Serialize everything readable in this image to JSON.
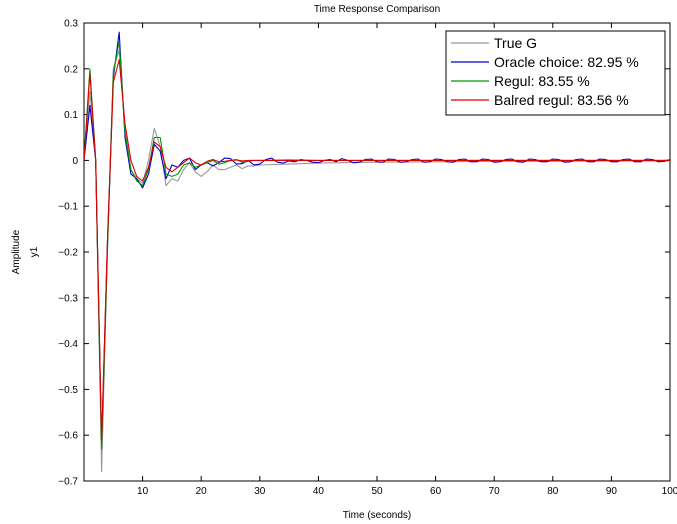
{
  "chart_data": {
    "type": "line",
    "title": "Time Response Comparison",
    "xlabel": "Time (seconds)",
    "ylabel": "Amplitude",
    "ylabel_sub": "y1",
    "xlim": [
      0,
      100
    ],
    "ylim": [
      -0.7,
      0.3
    ],
    "xticks": [
      10,
      20,
      30,
      40,
      50,
      60,
      70,
      80,
      90,
      100
    ],
    "yticks": [
      0.3,
      0.2,
      0.1,
      0,
      -0.1,
      -0.2,
      -0.3,
      -0.4,
      -0.5,
      -0.6,
      -0.7
    ],
    "ytick_labels": [
      "0.3",
      "0.2",
      "0.1",
      "0",
      "−0.1",
      "−0.2",
      "−0.3",
      "−0.4",
      "−0.5",
      "−0.6",
      "−0.7"
    ],
    "grid": false,
    "legend_position": "top-right",
    "series": [
      {
        "name": "True G",
        "color": "#999999",
        "x": [
          0,
          1,
          2,
          3,
          4,
          5,
          6,
          7,
          8,
          9,
          10,
          11,
          12,
          13,
          14,
          15,
          16,
          17,
          18,
          19,
          20,
          21,
          22,
          23,
          24,
          25,
          26,
          27,
          28,
          29,
          30,
          35,
          40,
          50,
          60,
          70,
          80,
          90,
          100
        ],
        "y": [
          0,
          0.15,
          0.0,
          -0.68,
          -0.2,
          0.2,
          0.24,
          0.07,
          -0.02,
          -0.04,
          -0.05,
          0.0,
          0.07,
          0.03,
          -0.055,
          -0.04,
          -0.045,
          -0.02,
          -0.005,
          -0.025,
          -0.035,
          -0.025,
          -0.01,
          -0.02,
          -0.02,
          -0.015,
          -0.01,
          -0.018,
          -0.012,
          -0.012,
          -0.01,
          -0.008,
          -0.006,
          -0.004,
          -0.003,
          -0.002,
          -0.002,
          -0.001,
          -0.001
        ]
      },
      {
        "name": "Oracle choice: 82.95 %",
        "color": "#0000cc",
        "x": [
          0,
          1,
          2,
          3,
          4,
          5,
          6,
          7,
          8,
          9,
          10,
          11,
          12,
          13,
          14,
          15,
          16,
          17,
          18,
          19,
          20,
          21,
          22,
          23,
          24,
          25,
          26,
          27,
          28,
          29,
          30,
          31,
          32,
          33,
          34,
          35,
          36,
          37,
          38,
          39,
          40,
          41,
          42,
          43,
          44,
          45,
          46,
          47,
          48,
          49,
          50,
          51,
          52,
          53,
          54,
          55,
          56,
          57,
          58,
          59,
          60,
          61,
          62,
          63,
          64,
          65,
          66,
          67,
          68,
          69,
          70,
          71,
          72,
          73,
          74,
          75,
          76,
          77,
          78,
          79,
          80,
          81,
          82,
          83,
          84,
          85,
          86,
          87,
          88,
          89,
          90,
          91,
          92,
          93,
          94,
          95,
          96,
          97,
          98,
          99,
          100
        ],
        "y": [
          0,
          0.12,
          0.0,
          -0.62,
          -0.18,
          0.18,
          0.28,
          0.05,
          -0.03,
          -0.04,
          -0.06,
          -0.03,
          0.035,
          0.02,
          -0.04,
          -0.01,
          -0.015,
          0.0,
          0.005,
          -0.02,
          -0.01,
          -0.005,
          -0.012,
          -0.005,
          0.005,
          0.004,
          -0.008,
          -0.007,
          0.0,
          -0.01,
          -0.008,
          0.002,
          0.005,
          -0.004,
          -0.006,
          -0.001,
          -0.003,
          0.002,
          0.0,
          -0.004,
          -0.005,
          0.0,
          0.002,
          -0.003,
          0.004,
          0.0,
          -0.005,
          -0.004,
          0.002,
          0.003,
          -0.003,
          -0.004,
          0.003,
          0.002,
          -0.004,
          -0.003,
          0.002,
          0.003,
          -0.004,
          -0.003,
          0.003,
          0.002,
          -0.003,
          -0.004,
          0.002,
          0.003,
          -0.003,
          -0.003,
          0.003,
          0.002,
          -0.004,
          -0.003,
          0.002,
          0.003,
          -0.003,
          -0.004,
          0.003,
          0.002,
          -0.003,
          -0.003,
          0.003,
          0.002,
          -0.004,
          -0.003,
          0.002,
          0.003,
          -0.003,
          -0.003,
          0.003,
          0.002,
          -0.003,
          -0.003,
          0.002,
          0.003,
          -0.003,
          -0.003,
          0.003,
          0.002,
          -0.003,
          -0.002,
          0.002
        ]
      },
      {
        "name": "Regul: 83.55 %",
        "color": "#009900",
        "x": [
          0,
          1,
          2,
          3,
          4,
          5,
          6,
          7,
          8,
          9,
          10,
          11,
          12,
          13,
          14,
          15,
          16,
          17,
          18,
          19,
          20,
          21,
          22,
          23,
          24,
          25,
          26,
          27,
          28,
          29,
          30,
          35,
          40,
          50,
          60,
          70,
          80,
          90,
          100
        ],
        "y": [
          0,
          0.2,
          0.0,
          -0.63,
          -0.2,
          0.19,
          0.26,
          0.06,
          -0.02,
          -0.045,
          -0.055,
          -0.02,
          0.05,
          0.05,
          -0.03,
          -0.035,
          -0.03,
          -0.01,
          -0.005,
          -0.015,
          -0.01,
          -0.005,
          0.0,
          -0.008,
          -0.005,
          0.0,
          0.002,
          -0.004,
          -0.002,
          0.0,
          0.0,
          0.001,
          0.0,
          0.0,
          0.0,
          0.0,
          0.0,
          0.0,
          0.0
        ]
      },
      {
        "name": "Balred regul: 83.56 %",
        "color": "#dd0000",
        "x": [
          0,
          1,
          2,
          3,
          4,
          5,
          6,
          7,
          8,
          9,
          10,
          11,
          12,
          13,
          14,
          15,
          16,
          17,
          18,
          19,
          20,
          21,
          22,
          23,
          24,
          25,
          26,
          27,
          28,
          29,
          30,
          35,
          40,
          50,
          60,
          70,
          80,
          90,
          100
        ],
        "y": [
          0,
          0.19,
          0.0,
          -0.61,
          -0.18,
          0.17,
          0.22,
          0.08,
          0.0,
          -0.035,
          -0.045,
          -0.015,
          0.04,
          0.03,
          -0.015,
          -0.025,
          -0.015,
          -0.005,
          0.005,
          -0.005,
          -0.01,
          -0.002,
          0.002,
          -0.003,
          -0.002,
          0.0,
          0.001,
          -0.001,
          0.0,
          0.0,
          0.0,
          0.0,
          0.0,
          0.0,
          0.0,
          0.0,
          0.0,
          0.0,
          0.0
        ]
      }
    ]
  }
}
